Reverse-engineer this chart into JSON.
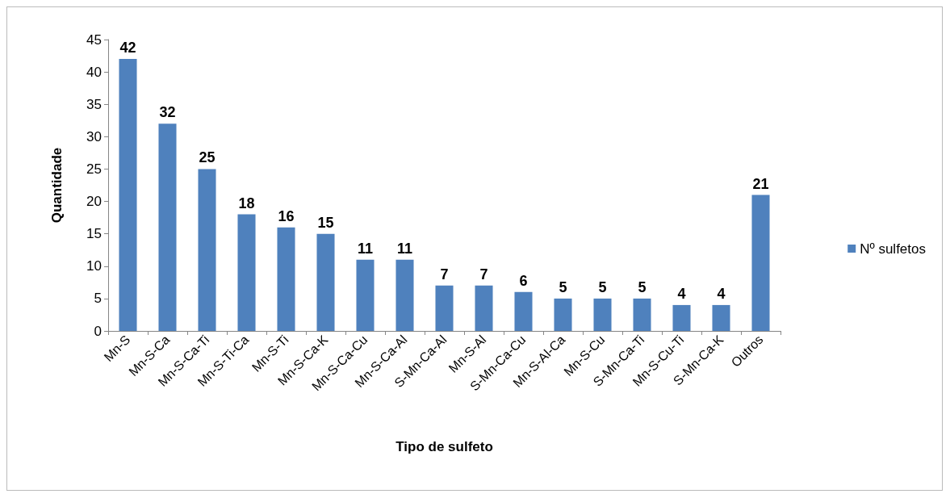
{
  "chart_data": {
    "type": "bar",
    "xlabel": "Tipo de sulfeto",
    "ylabel": "Quantidade",
    "categories": [
      "Mn-S",
      "Mn-S-Ca",
      "Mn-S-Ca-Ti",
      "Mn-S-Ti-Ca",
      "Mn-S-Ti",
      "Mn-S-Ca-K",
      "Mn-S-Ca-Cu",
      "Mn-S-Ca-Al",
      "S-Mn-Ca-Al",
      "Mn-S-Al",
      "S-Mn-Ca-Cu",
      "Mn-S-Al-Ca",
      "Mn-S-Cu",
      "S-Mn-Ca-Ti",
      "Mn-S-Cu-Ti",
      "S-Mn-Ca-K",
      "Outros"
    ],
    "series": [
      {
        "name": "Nº sulfetos",
        "color": "#4f81bd",
        "values": [
          42,
          32,
          25,
          18,
          16,
          15,
          11,
          11,
          7,
          7,
          6,
          5,
          5,
          5,
          4,
          4,
          21
        ]
      }
    ],
    "ylim": [
      0,
      45
    ],
    "yticks": [
      0,
      5,
      10,
      15,
      20,
      25,
      30,
      35,
      40,
      45
    ],
    "grid": false,
    "legend": "right",
    "data_labels": true
  }
}
